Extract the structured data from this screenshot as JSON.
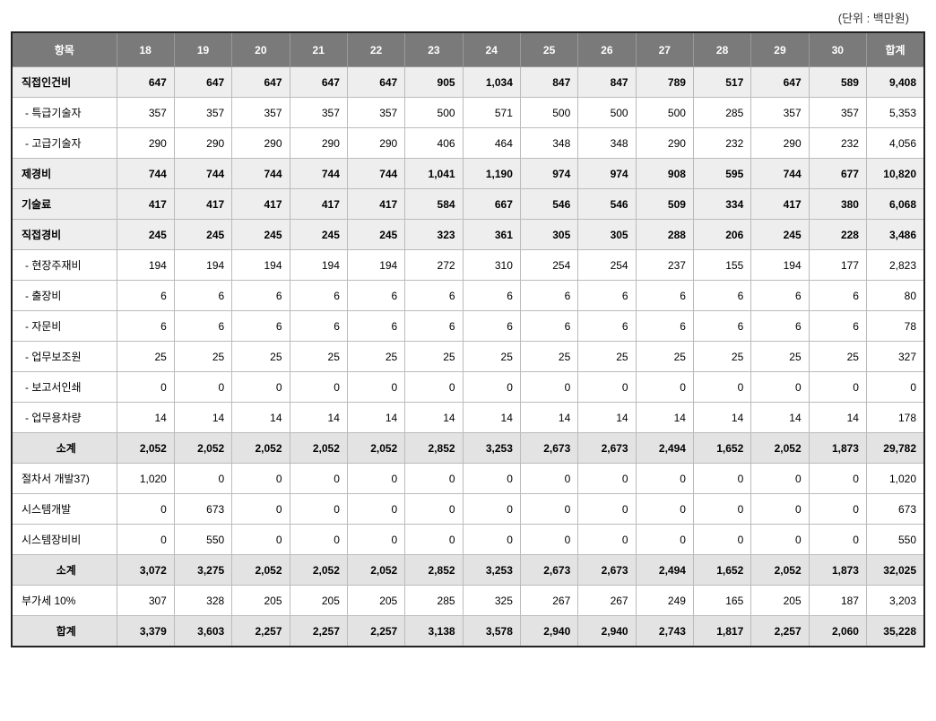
{
  "unit_label": "(단위 : 백만원)",
  "header": {
    "item_col": "항목",
    "years": [
      "18",
      "19",
      "20",
      "21",
      "22",
      "23",
      "24",
      "25",
      "26",
      "27",
      "28",
      "29",
      "30"
    ],
    "total_col": "합계"
  },
  "table": {
    "cols_count": 15,
    "header_bg": "#7a7a7a",
    "header_fg": "#ffffff",
    "border_outer": "#222222",
    "border_inner": "#bbbbbb",
    "cat_bg": "#eeeeee",
    "subtotal_bg": "#e3e3e3",
    "row_bg": "#ffffff"
  },
  "rows": [
    {
      "cls": "cat",
      "label": "직접인건비",
      "v": [
        "647",
        "647",
        "647",
        "647",
        "647",
        "905",
        "1,034",
        "847",
        "847",
        "789",
        "517",
        "647",
        "589",
        "9,408"
      ]
    },
    {
      "cls": "sub",
      "label": "- 특급기술자",
      "v": [
        "357",
        "357",
        "357",
        "357",
        "357",
        "500",
        "571",
        "500",
        "500",
        "500",
        "285",
        "357",
        "357",
        "5,353"
      ]
    },
    {
      "cls": "sub",
      "label": "- 고급기술자",
      "v": [
        "290",
        "290",
        "290",
        "290",
        "290",
        "406",
        "464",
        "348",
        "348",
        "290",
        "232",
        "290",
        "232",
        "4,056"
      ]
    },
    {
      "cls": "cat",
      "label": "제경비",
      "v": [
        "744",
        "744",
        "744",
        "744",
        "744",
        "1,041",
        "1,190",
        "974",
        "974",
        "908",
        "595",
        "744",
        "677",
        "10,820"
      ]
    },
    {
      "cls": "cat",
      "label": "기술료",
      "v": [
        "417",
        "417",
        "417",
        "417",
        "417",
        "584",
        "667",
        "546",
        "546",
        "509",
        "334",
        "417",
        "380",
        "6,068"
      ]
    },
    {
      "cls": "cat",
      "label": "직접경비",
      "v": [
        "245",
        "245",
        "245",
        "245",
        "245",
        "323",
        "361",
        "305",
        "305",
        "288",
        "206",
        "245",
        "228",
        "3,486"
      ]
    },
    {
      "cls": "sub",
      "label": "- 현장주재비",
      "v": [
        "194",
        "194",
        "194",
        "194",
        "194",
        "272",
        "310",
        "254",
        "254",
        "237",
        "155",
        "194",
        "177",
        "2,823"
      ]
    },
    {
      "cls": "sub",
      "label": "- 출장비",
      "v": [
        "6",
        "6",
        "6",
        "6",
        "6",
        "6",
        "6",
        "6",
        "6",
        "6",
        "6",
        "6",
        "6",
        "80"
      ]
    },
    {
      "cls": "sub",
      "label": "- 자문비",
      "v": [
        "6",
        "6",
        "6",
        "6",
        "6",
        "6",
        "6",
        "6",
        "6",
        "6",
        "6",
        "6",
        "6",
        "78"
      ]
    },
    {
      "cls": "sub",
      "label": "- 업무보조원",
      "v": [
        "25",
        "25",
        "25",
        "25",
        "25",
        "25",
        "25",
        "25",
        "25",
        "25",
        "25",
        "25",
        "25",
        "327"
      ]
    },
    {
      "cls": "sub",
      "label": "- 보고서인쇄",
      "v": [
        "0",
        "0",
        "0",
        "0",
        "0",
        "0",
        "0",
        "0",
        "0",
        "0",
        "0",
        "0",
        "0",
        "0"
      ]
    },
    {
      "cls": "sub",
      "label": "- 업무용차량",
      "v": [
        "14",
        "14",
        "14",
        "14",
        "14",
        "14",
        "14",
        "14",
        "14",
        "14",
        "14",
        "14",
        "14",
        "178"
      ]
    },
    {
      "cls": "subtotal",
      "label": "소계",
      "v": [
        "2,052",
        "2,052",
        "2,052",
        "2,052",
        "2,052",
        "2,852",
        "3,253",
        "2,673",
        "2,673",
        "2,494",
        "1,652",
        "2,052",
        "1,873",
        "29,782"
      ]
    },
    {
      "cls": "item",
      "label": "절차서 개발37)",
      "v": [
        "1,020",
        "0",
        "0",
        "0",
        "0",
        "0",
        "0",
        "0",
        "0",
        "0",
        "0",
        "0",
        "0",
        "1,020"
      ]
    },
    {
      "cls": "item",
      "label": "시스템개발",
      "v": [
        "0",
        "673",
        "0",
        "0",
        "0",
        "0",
        "0",
        "0",
        "0",
        "0",
        "0",
        "0",
        "0",
        "673"
      ]
    },
    {
      "cls": "item",
      "label": "시스템장비비",
      "v": [
        "0",
        "550",
        "0",
        "0",
        "0",
        "0",
        "0",
        "0",
        "0",
        "0",
        "0",
        "0",
        "0",
        "550"
      ]
    },
    {
      "cls": "subtotal",
      "label": "소계",
      "v": [
        "3,072",
        "3,275",
        "2,052",
        "2,052",
        "2,052",
        "2,852",
        "3,253",
        "2,673",
        "2,673",
        "2,494",
        "1,652",
        "2,052",
        "1,873",
        "32,025"
      ]
    },
    {
      "cls": "item",
      "label": "부가세 10%",
      "v": [
        "307",
        "328",
        "205",
        "205",
        "205",
        "285",
        "325",
        "267",
        "267",
        "249",
        "165",
        "205",
        "187",
        "3,203"
      ]
    },
    {
      "cls": "total",
      "label": "합계",
      "v": [
        "3,379",
        "3,603",
        "2,257",
        "2,257",
        "2,257",
        "3,138",
        "3,578",
        "2,940",
        "2,940",
        "2,743",
        "1,817",
        "2,257",
        "2,060",
        "35,228"
      ]
    }
  ]
}
